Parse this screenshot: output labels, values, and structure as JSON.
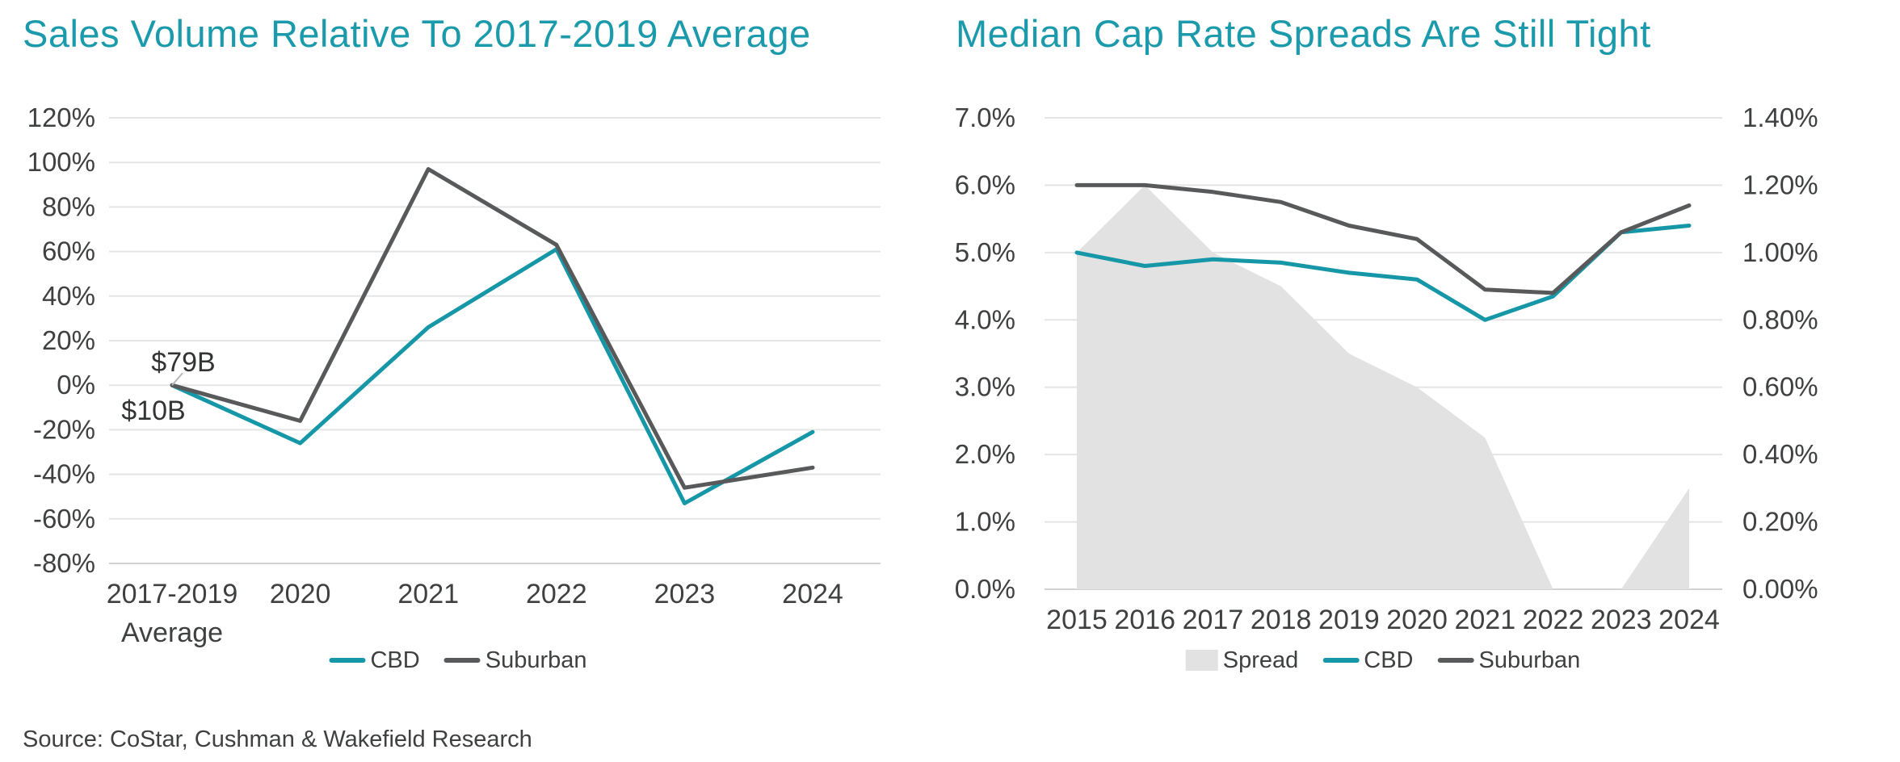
{
  "source": "Source: CoStar, Cushman & Wakefield Research",
  "colors": {
    "teal": "#1697A7",
    "dark_gray": "#58595B",
    "area_gray": "#E2E2E2",
    "title_teal": "#1B9AAB",
    "text": "#3F4041",
    "gridline": "#E5E5E5",
    "axis_line": "#D2D2D2",
    "leader": "#B8B8B8"
  },
  "chart_data": [
    {
      "type": "line",
      "title": "Sales Volume Relative To 2017-2019 Average",
      "categories": [
        "2017-2019 Average",
        "2020",
        "2021",
        "2022",
        "2023",
        "2024"
      ],
      "x_tick_lines": [
        [
          "2017-2019",
          "Average"
        ],
        [
          "2020"
        ],
        [
          "2021"
        ],
        [
          "2022"
        ],
        [
          "2023"
        ],
        [
          "2024"
        ]
      ],
      "unit": "%",
      "ylim": [
        -80,
        120
      ],
      "ytick_step": 20,
      "ytick_labels": [
        "120%",
        "100%",
        "80%",
        "60%",
        "40%",
        "20%",
        "0%",
        "-20%",
        "-40%",
        "-60%",
        "-80%"
      ],
      "grid": true,
      "legend_position": "bottom",
      "series": [
        {
          "name": "CBD",
          "style": "line",
          "color_key": "teal",
          "values": [
            0,
            -26,
            26,
            61,
            -53,
            -21
          ]
        },
        {
          "name": "Suburban",
          "style": "line",
          "color_key": "dark_gray",
          "values": [
            0,
            -16,
            97,
            63,
            -46,
            -37
          ]
        }
      ],
      "annotations": [
        {
          "text": "$79B",
          "series": "Suburban",
          "x_index": 0
        },
        {
          "text": "$10B",
          "series": "CBD",
          "x_index": 0
        }
      ],
      "legend": [
        {
          "label": "CBD",
          "swatch": "dash",
          "color_key": "teal"
        },
        {
          "label": "Suburban",
          "swatch": "dash",
          "color_key": "dark_gray"
        }
      ]
    },
    {
      "type": "line+area",
      "title": "Median Cap Rate Spreads Are Still Tight",
      "categories": [
        "2015",
        "2016",
        "2017",
        "2018",
        "2019",
        "2020",
        "2021",
        "2022",
        "2023",
        "2024"
      ],
      "left_axis": {
        "ylim": [
          0,
          7
        ],
        "tick_step": 1.0,
        "tick_labels": [
          "7.0%",
          "6.0%",
          "5.0%",
          "4.0%",
          "3.0%",
          "2.0%",
          "1.0%",
          "0.0%"
        ]
      },
      "right_axis": {
        "ylim": [
          0,
          1.4
        ],
        "tick_step": 0.2,
        "tick_labels": [
          "1.40%",
          "1.20%",
          "1.00%",
          "0.80%",
          "0.60%",
          "0.40%",
          "0.20%",
          "0.00%"
        ]
      },
      "grid": true,
      "legend_position": "bottom",
      "series": [
        {
          "name": "Spread",
          "axis": "right",
          "style": "area",
          "color_key": "area_gray",
          "values": [
            1.0,
            1.2,
            1.0,
            0.9,
            0.7,
            0.6,
            0.45,
            0.0,
            0.0,
            0.3
          ]
        },
        {
          "name": "CBD",
          "axis": "left",
          "style": "line",
          "color_key": "teal",
          "values": [
            5.0,
            4.8,
            4.9,
            4.85,
            4.7,
            4.6,
            4.0,
            4.35,
            5.3,
            5.4
          ]
        },
        {
          "name": "Suburban",
          "axis": "left",
          "style": "line",
          "color_key": "dark_gray",
          "values": [
            6.0,
            6.0,
            5.9,
            5.75,
            5.4,
            5.2,
            4.45,
            4.4,
            5.3,
            5.7
          ]
        }
      ],
      "legend": [
        {
          "label": "Spread",
          "swatch": "box",
          "color_key": "area_gray"
        },
        {
          "label": "CBD",
          "swatch": "dash",
          "color_key": "teal"
        },
        {
          "label": "Suburban",
          "swatch": "dash",
          "color_key": "dark_gray"
        }
      ]
    }
  ]
}
